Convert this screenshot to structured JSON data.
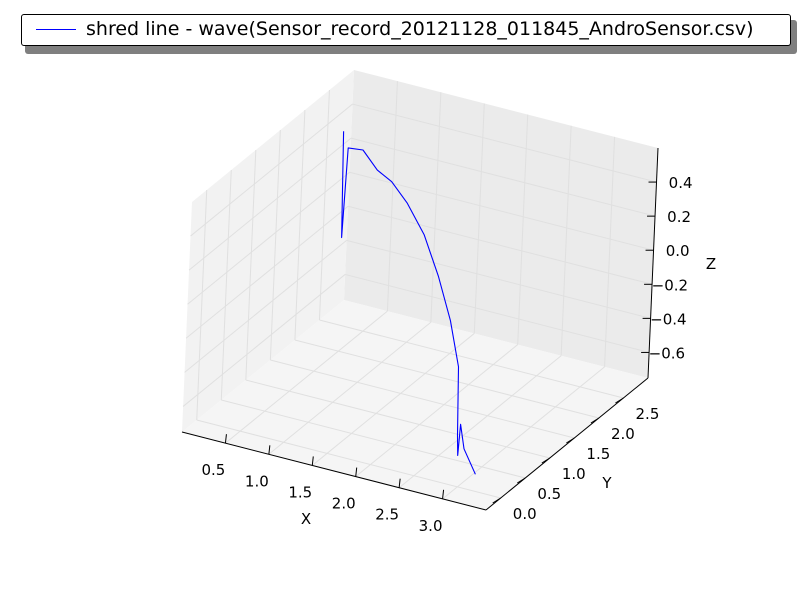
{
  "chart_data": {
    "type": "line3d",
    "legend_placement": "top",
    "grid": true,
    "series": [
      {
        "name": "shred line - wave(Sensor_record_20121128_011845_AndroSensor.csv)",
        "color": "#0000ff",
        "x": [
          0.02,
          0.05,
          0.08,
          0.25,
          0.45,
          0.7,
          1.05,
          1.5,
          1.9,
          2.3,
          2.55,
          2.68,
          2.72,
          2.78,
          2.95,
          3.2
        ],
        "y": [
          2.8,
          2.8,
          2.8,
          2.8,
          2.75,
          2.6,
          2.3,
          1.85,
          1.45,
          1.0,
          0.75,
          0.55,
          0.5,
          0.42,
          0.2,
          0.0
        ],
        "z": [
          0.29,
          -0.33,
          0.2,
          0.21,
          0.13,
          0.13,
          0.12,
          0.1,
          0.0,
          -0.1,
          -0.28,
          -0.62,
          -0.72,
          -0.51,
          -0.58,
          -0.65
        ]
      }
    ],
    "axes": {
      "x": {
        "label": "X",
        "range": [
          0.0,
          3.5
        ],
        "ticks": [
          "0.5",
          "1.0",
          "1.5",
          "2.0",
          "2.5",
          "3.0"
        ]
      },
      "y": {
        "label": "Y",
        "range": [
          -0.3,
          3.0
        ],
        "ticks": [
          "0.0",
          "0.5",
          "1.0",
          "1.5",
          "2.0",
          "2.5"
        ]
      },
      "z": {
        "label": "Z",
        "range": [
          -0.75,
          0.6
        ],
        "ticks": [
          "0.4",
          "0.2",
          "0.0",
          "−0.2",
          "−0.4",
          "−0.6"
        ]
      }
    }
  }
}
